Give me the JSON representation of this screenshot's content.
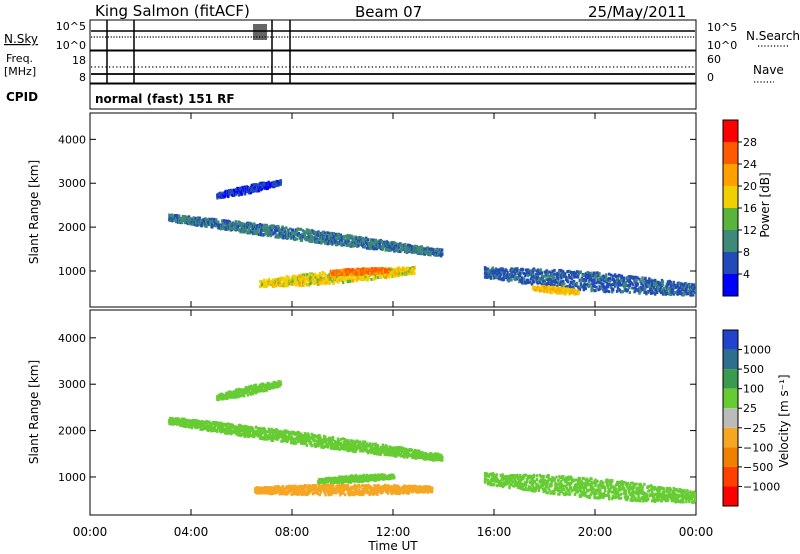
{
  "header": {
    "station": "King Salmon (fitACF)",
    "beam": "Beam 07",
    "date": "25/May/2011"
  },
  "sky_panel": {
    "left_label": "N.Sky",
    "right_label": "N.Search",
    "left_ticks": [
      "10^5",
      "10^0"
    ],
    "right_ticks": [
      "10^5",
      "10^0"
    ]
  },
  "freq_panel": {
    "left_label_1": "Freq.",
    "left_label_2": "[MHz]",
    "right_label": "Nave",
    "left_ticks": [
      "18",
      "8"
    ],
    "right_ticks": [
      "60",
      "0"
    ]
  },
  "cpid_panel": {
    "label": "CPID",
    "mode": "normal (fast) 151 RF"
  },
  "x_axis": {
    "label": "Time UT",
    "ticks": [
      "00:00",
      "04:00",
      "08:00",
      "12:00",
      "16:00",
      "20:00",
      "00:00"
    ]
  },
  "power_panel": {
    "ylabel": "Slant Range [km]",
    "yticks": [
      "1000",
      "2000",
      "3000",
      "4000"
    ],
    "colorbar_title": "Power [dB]",
    "colorbar_ticks": [
      "4",
      "8",
      "12",
      "16",
      "20",
      "24",
      "28"
    ],
    "colors": [
      "#0000ff",
      "#224ab8",
      "#3e8a78",
      "#5ab43c",
      "#f0d000",
      "#ffa000",
      "#ff5a00",
      "#ff0000"
    ]
  },
  "velocity_panel": {
    "ylabel": "Slant Range [km]",
    "yticks": [
      "1000",
      "2000",
      "3000",
      "4000"
    ],
    "colorbar_title": "Velocity [m s⁻¹]",
    "colorbar_ticks": [
      "1000",
      "500",
      "100",
      "25",
      "−25",
      "−100",
      "−500",
      "−1000"
    ],
    "colors": [
      "#2244cc",
      "#2e6e8e",
      "#3a9a50",
      "#66cc33",
      "#bbbbbb",
      "#f5a623",
      "#f08000",
      "#ff4000",
      "#ff0000"
    ]
  },
  "chart_data": [
    {
      "type": "heatmap",
      "title": "Power [dB]",
      "xlabel": "Time UT",
      "ylabel": "Slant Range [km]",
      "x_range_hours": [
        0,
        24
      ],
      "ylim": [
        180,
        4600
      ],
      "color_range": [
        0,
        32
      ],
      "echo_regions": [
        {
          "t_start": 3.1,
          "t_end": 13.9,
          "range_center_start": 2200,
          "range_center_end": 1400,
          "width": 260,
          "value": 9
        },
        {
          "t_start": 6.7,
          "t_end": 12.8,
          "range_center_start": 700,
          "range_center_end": 1000,
          "width": 280,
          "value": 18
        },
        {
          "t_start": 9.5,
          "t_end": 11.8,
          "range_center_start": 950,
          "range_center_end": 1000,
          "width": 130,
          "value": 25
        },
        {
          "t_start": 5.0,
          "t_end": 7.5,
          "range_center_start": 2700,
          "range_center_end": 3000,
          "width": 180,
          "value": 5
        },
        {
          "t_start": 15.6,
          "t_end": 24.0,
          "range_center_start": 950,
          "range_center_end": 550,
          "width": 420,
          "value": 7
        },
        {
          "t_start": 17.5,
          "t_end": 19.3,
          "range_center_start": 600,
          "range_center_end": 500,
          "width": 140,
          "value": 20
        }
      ]
    },
    {
      "type": "heatmap",
      "title": "Velocity [m s⁻¹]",
      "xlabel": "Time UT",
      "ylabel": "Slant Range [km]",
      "x_range_hours": [
        0,
        24
      ],
      "ylim": [
        180,
        4600
      ],
      "color_range": [
        -1000,
        1000
      ],
      "echo_regions": [
        {
          "t_start": 3.1,
          "t_end": 13.9,
          "range_center_start": 2200,
          "range_center_end": 1400,
          "width": 260,
          "value": 0
        },
        {
          "t_start": 6.5,
          "t_end": 13.5,
          "range_center_start": 700,
          "range_center_end": 720,
          "width": 220,
          "value": -150
        },
        {
          "t_start": 9.0,
          "t_end": 12.0,
          "range_center_start": 900,
          "range_center_end": 1000,
          "width": 140,
          "value": 0
        },
        {
          "t_start": 5.0,
          "t_end": 7.5,
          "range_center_start": 2700,
          "range_center_end": 3000,
          "width": 180,
          "value": 0
        },
        {
          "t_start": 15.6,
          "t_end": 24.0,
          "range_center_start": 950,
          "range_center_end": 550,
          "width": 420,
          "value": 0
        }
      ]
    }
  ]
}
